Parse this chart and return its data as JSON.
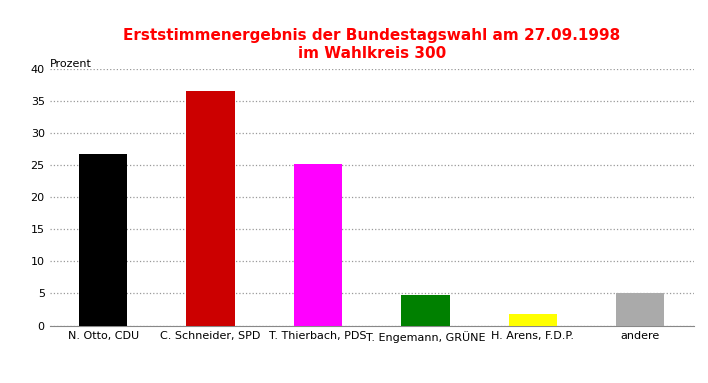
{
  "title_line1": "Erststimmenergebnis der Bundestagswahl am 27.09.1998",
  "title_line2": "im Wahlkreis 300",
  "title_color": "#ff0000",
  "ylabel": "Prozent",
  "categories": [
    "N. Otto, CDU",
    "C. Schneider, SPD",
    "T. Thierbach, PDS",
    "T. Engemann, GRÜNE",
    "H. Arens, F.D.P.",
    "andere"
  ],
  "values": [
    26.7,
    36.5,
    25.2,
    4.7,
    1.8,
    5.0
  ],
  "bar_colors": [
    "#000000",
    "#cc0000",
    "#ff00ff",
    "#008000",
    "#ffff00",
    "#aaaaaa"
  ],
  "ylim": [
    0,
    40
  ],
  "yticks": [
    0,
    5,
    10,
    15,
    20,
    25,
    30,
    35,
    40
  ],
  "background_color": "#ffffff",
  "grid_color": "#999999",
  "tick_fontsize": 8,
  "title_fontsize": 11,
  "ylabel_fontsize": 8
}
